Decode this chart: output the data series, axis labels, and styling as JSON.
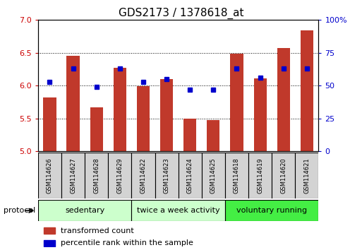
{
  "title": "GDS2173 / 1378618_at",
  "samples": [
    "GSM114626",
    "GSM114627",
    "GSM114628",
    "GSM114629",
    "GSM114622",
    "GSM114623",
    "GSM114624",
    "GSM114625",
    "GSM114618",
    "GSM114619",
    "GSM114620",
    "GSM114621"
  ],
  "transformed_count": [
    5.82,
    6.45,
    5.67,
    6.27,
    5.99,
    6.1,
    5.5,
    5.47,
    6.49,
    6.11,
    6.57,
    6.84
  ],
  "percentile_rank": [
    53,
    63,
    49,
    63,
    53,
    55,
    47,
    47,
    63,
    56,
    63,
    63
  ],
  "ymin": 5.0,
  "ymax": 7.0,
  "yticks": [
    5.0,
    5.5,
    6.0,
    6.5,
    7.0
  ],
  "y2min": 0,
  "y2max": 100,
  "y2ticks": [
    0,
    25,
    50,
    75,
    100
  ],
  "bar_color": "#c0392b",
  "marker_color": "#0000cc",
  "bar_width": 0.55,
  "groups": [
    {
      "label": "sedentary",
      "start": 0,
      "end": 3,
      "color": "#ccffcc"
    },
    {
      "label": "twice a week activity",
      "start": 4,
      "end": 7,
      "color": "#ccffcc"
    },
    {
      "label": "voluntary running",
      "start": 8,
      "end": 11,
      "color": "#44ee44"
    }
  ],
  "sample_box_color": "#d3d3d3",
  "xlabel": "protocol",
  "legend_red": "transformed count",
  "legend_blue": "percentile rank within the sample",
  "tick_label_color_left": "#cc0000",
  "tick_label_color_right": "#0000cc",
  "title_fontsize": 11,
  "axis_fontsize": 8,
  "legend_fontsize": 8,
  "sample_fontsize": 6,
  "group_fontsize": 8
}
